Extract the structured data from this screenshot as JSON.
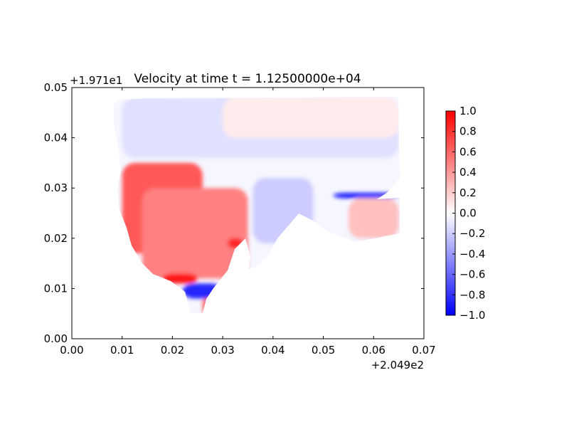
{
  "chart_data": {
    "type": "heatmap",
    "title": "Velocity at time t = 1.12500000e+04",
    "xlabel": "",
    "ylabel": "",
    "xlim": [
      0.0,
      0.07
    ],
    "ylim": [
      0.0,
      0.05
    ],
    "x_ticks": [
      "0.00",
      "0.01",
      "0.02",
      "0.03",
      "0.04",
      "0.05",
      "0.06",
      "0.07"
    ],
    "y_ticks": [
      "0.00",
      "0.01",
      "0.02",
      "0.03",
      "0.04",
      "0.05"
    ],
    "x_offset": "+2.049e2",
    "y_offset": "+1.971e1",
    "colormap": "bwr",
    "colorbar": {
      "range": [
        -1.0,
        1.0
      ],
      "ticks": [
        "−1.0",
        "−0.8",
        "−0.6",
        "−0.4",
        "−0.2",
        "0.0",
        "0.2",
        "0.4",
        "0.6",
        "0.8",
        "1.0"
      ],
      "colors": {
        "low": "#0000ff",
        "mid": "#ffffff",
        "high": "#ff0000"
      }
    },
    "field_regions": [
      {
        "name": "upper band",
        "x": [
          0.01,
          0.065
        ],
        "y": [
          0.036,
          0.048
        ],
        "value": -0.12
      },
      {
        "name": "upper-right patch",
        "x": [
          0.03,
          0.065
        ],
        "y": [
          0.04,
          0.048
        ],
        "value": 0.08
      },
      {
        "name": "left lobe",
        "x": [
          0.01,
          0.026
        ],
        "y": [
          0.017,
          0.035
        ],
        "value": 0.65
      },
      {
        "name": "central lobe",
        "x": [
          0.014,
          0.035
        ],
        "y": [
          0.012,
          0.03
        ],
        "value": 0.5
      },
      {
        "name": "lower band",
        "x": [
          0.018,
          0.025
        ],
        "y": [
          0.011,
          0.013
        ],
        "value": 0.9
      },
      {
        "name": "lower-right jet",
        "x": [
          0.031,
          0.034
        ],
        "y": [
          0.018,
          0.02
        ],
        "value": 0.85
      },
      {
        "name": "bottom edge",
        "x": [
          0.022,
          0.03
        ],
        "y": [
          0.008,
          0.011
        ],
        "value": -0.85
      },
      {
        "name": "tail",
        "x": [
          0.026,
          0.028
        ],
        "y": [
          0.005,
          0.008
        ],
        "value": 0.6
      },
      {
        "name": "channel",
        "x": [
          0.036,
          0.048
        ],
        "y": [
          0.019,
          0.032
        ],
        "value": -0.2
      },
      {
        "name": "shelf",
        "x": [
          0.055,
          0.065
        ],
        "y": [
          0.02,
          0.028
        ],
        "value": 0.25
      },
      {
        "name": "shelf edge",
        "x": [
          0.052,
          0.065
        ],
        "y": [
          0.028,
          0.029
        ],
        "value": -0.95
      }
    ]
  }
}
